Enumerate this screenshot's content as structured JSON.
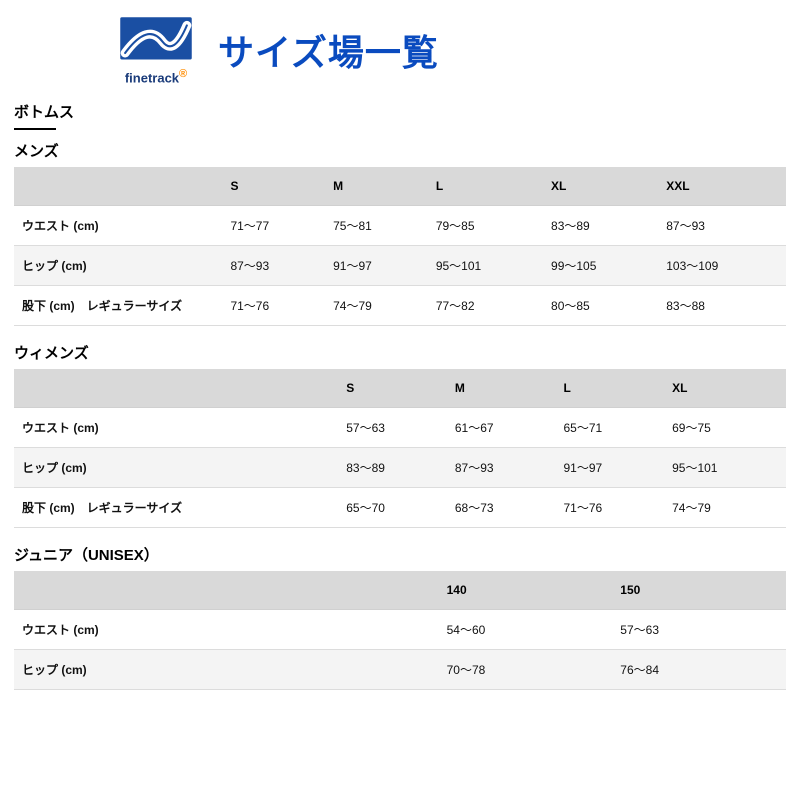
{
  "header": {
    "brand": "finetrack",
    "title": "サイズ場一覧",
    "title_color": "#0a4bbf",
    "logo_colors": {
      "primary": "#1a4fa3",
      "accent_bg": "#ffffff"
    }
  },
  "category": {
    "label": "ボトムス"
  },
  "tables": [
    {
      "title": "メンズ",
      "label_col_width": "27%",
      "columns": [
        "",
        "S",
        "M",
        "L",
        "XL",
        "XXL"
      ],
      "rows": [
        {
          "label": "ウエスト (cm)",
          "values": [
            "71～77",
            "75～81",
            "79～85",
            "83～89",
            "87～93"
          ]
        },
        {
          "label": "ヒップ (cm)",
          "values": [
            "87～93",
            "91～97",
            "95～101",
            "99～105",
            "103～109"
          ]
        },
        {
          "label": "股下 (cm)　レギュラーサイズ",
          "values": [
            "71～76",
            "74～79",
            "77～82",
            "80～85",
            "83～88"
          ]
        }
      ]
    },
    {
      "title": "ウィメンズ",
      "label_col_width": "42%",
      "columns": [
        "",
        "S",
        "M",
        "L",
        "XL"
      ],
      "rows": [
        {
          "label": "ウエスト (cm)",
          "values": [
            "57～63",
            "61～67",
            "65～71",
            "69～75"
          ]
        },
        {
          "label": "ヒップ (cm)",
          "values": [
            "83～89",
            "87～93",
            "91～97",
            "95～101"
          ]
        },
        {
          "label": "股下 (cm)　レギュラーサイズ",
          "values": [
            "65～70",
            "68～73",
            "71～76",
            "74～79"
          ]
        }
      ]
    },
    {
      "title": "ジュニア（UNISEX）",
      "label_col_width": "55%",
      "columns": [
        "",
        "140",
        "150"
      ],
      "rows": [
        {
          "label": "ウエスト (cm)",
          "values": [
            "54～60",
            "57～63"
          ]
        },
        {
          "label": "ヒップ (cm)",
          "values": [
            "70～78",
            "76～84"
          ]
        }
      ]
    }
  ],
  "style": {
    "header_bg": "#d9d9d9",
    "row_even_bg": "#f4f4f4",
    "row_odd_bg": "#ffffff",
    "border_color": "#dcdcdc",
    "font_size_body": 12,
    "font_size_title": 36,
    "font_size_section": 15
  }
}
